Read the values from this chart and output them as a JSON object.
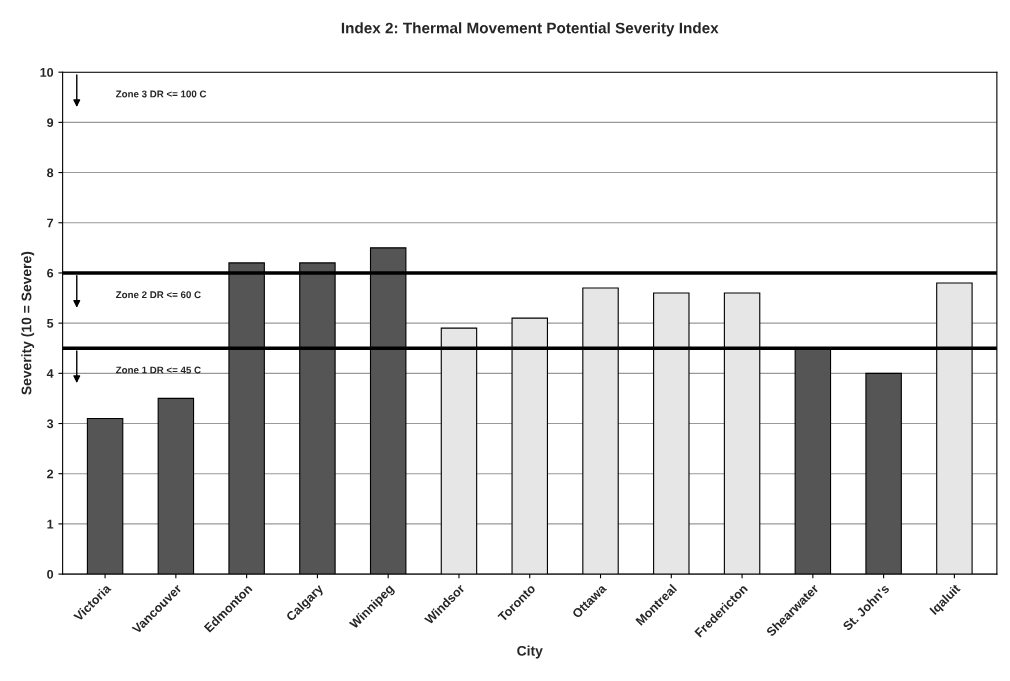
{
  "chart_data": {
    "type": "bar",
    "title": "Index 2: Thermal Movement Potential Severity Index",
    "xlabel": "City",
    "ylabel": "Severity (10 = Severe)",
    "categories": [
      "Victoria",
      "Vancouver",
      "Edmonton",
      "Calgary",
      "Winnipeg",
      "Windsor",
      "Toronto",
      "Ottawa",
      "Montreal",
      "Fredericton",
      "Shearwater",
      "St. John's",
      "Iqaluit"
    ],
    "values": [
      3.1,
      3.5,
      6.2,
      6.2,
      6.5,
      4.9,
      5.1,
      5.7,
      5.6,
      5.6,
      4.5,
      4.0,
      5.8
    ],
    "colors": [
      "#555555",
      "#555555",
      "#555555",
      "#555555",
      "#555555",
      "#e6e6e6",
      "#e6e6e6",
      "#e6e6e6",
      "#e6e6e6",
      "#e6e6e6",
      "#555555",
      "#555555",
      "#e6e6e6"
    ],
    "ylim": [
      0,
      10
    ],
    "yticks": [
      0,
      1,
      2,
      3,
      4,
      5,
      6,
      7,
      8,
      9,
      10
    ],
    "grid": "y",
    "ref_lines": [
      {
        "axis": "y",
        "value": 6,
        "color": "#000000"
      },
      {
        "axis": "y",
        "value": 4.5,
        "color": "#000000"
      }
    ],
    "annotations": [
      "Zone 3 DR <= 100 C",
      "Zone 2 DR <= 60 C",
      "Zone 1 DR <= 45 C"
    ]
  }
}
